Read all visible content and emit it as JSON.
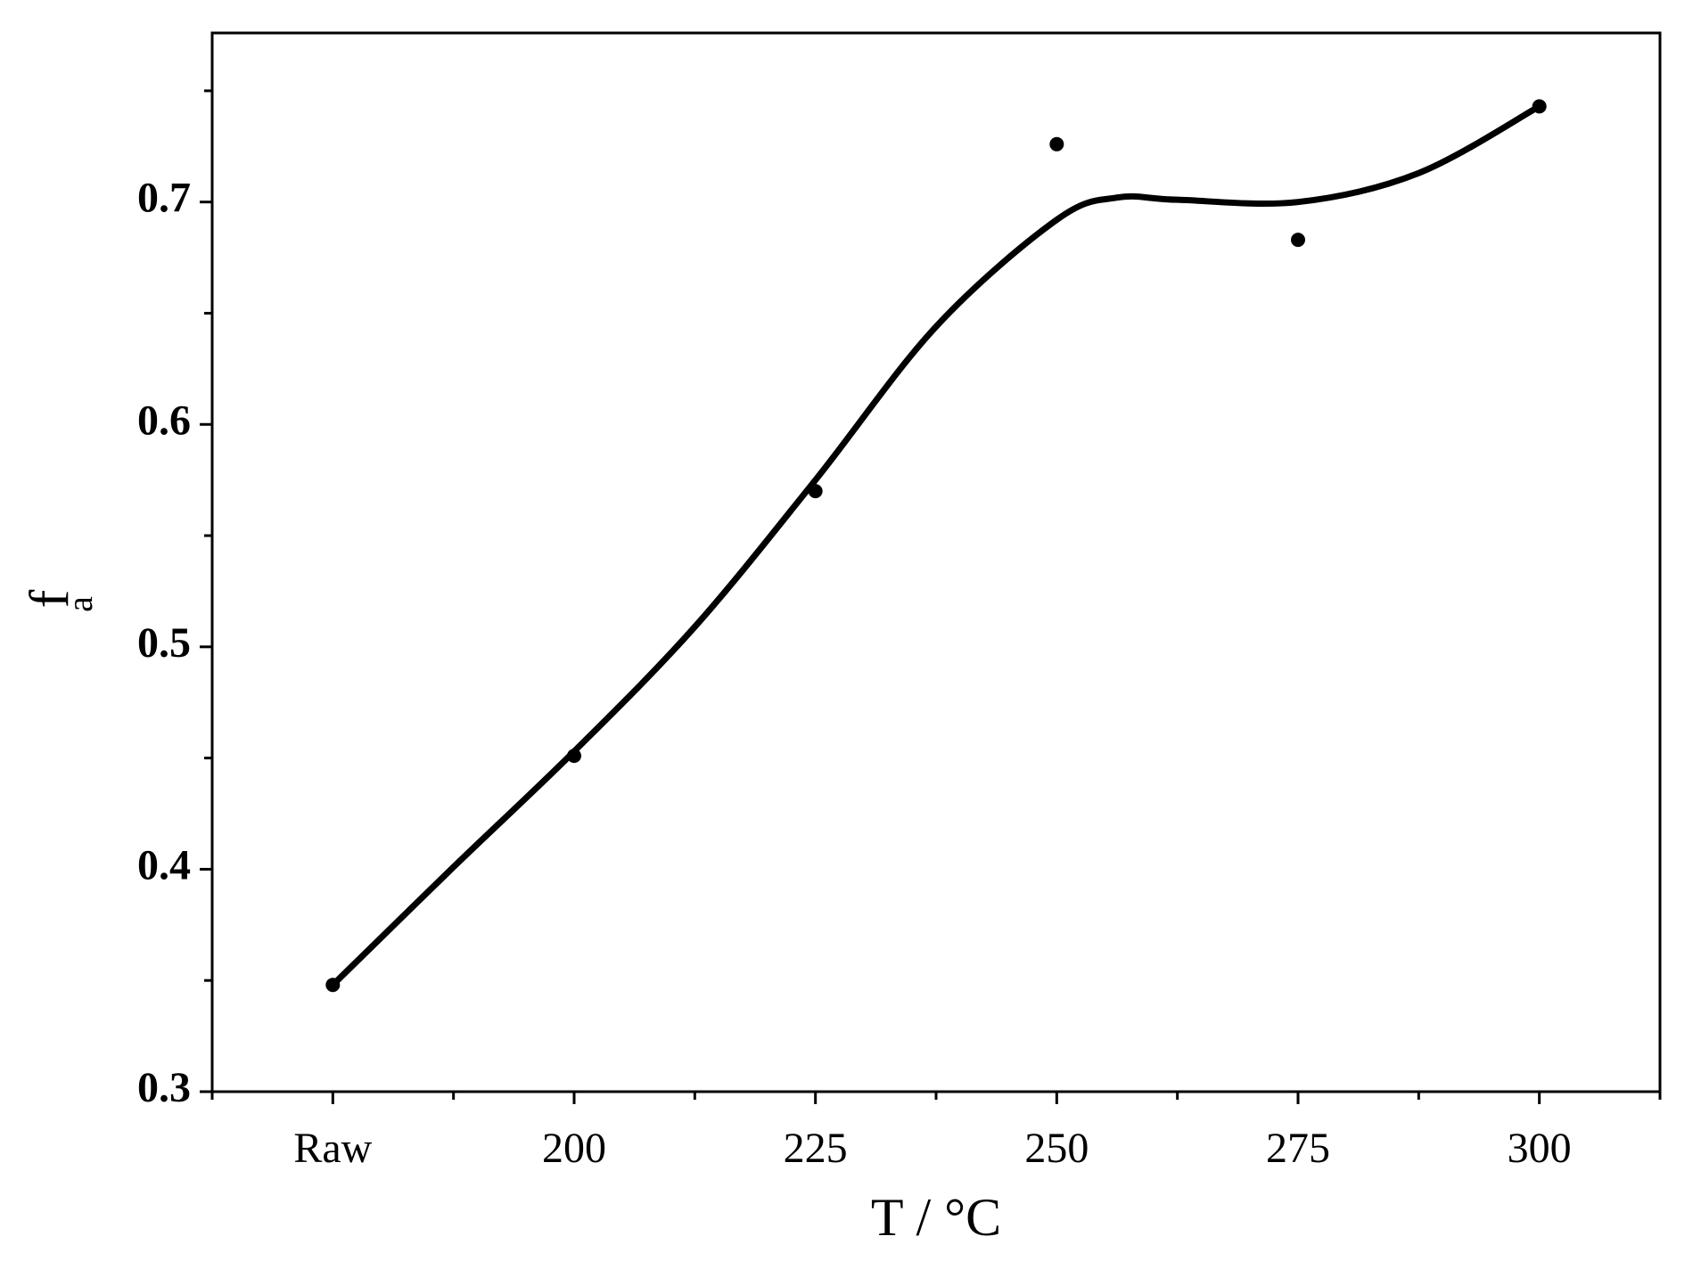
{
  "chart_data": {
    "type": "scatter",
    "xlabel": "T / °C",
    "ylabel": {
      "text": "f",
      "subscript": "a"
    },
    "xlim": [
      -0.5,
      5.5
    ],
    "xticks": [
      {
        "value": 0,
        "label": "Raw"
      },
      {
        "value": 1,
        "label": "200"
      },
      {
        "value": 2,
        "label": "225"
      },
      {
        "value": 3,
        "label": "250"
      },
      {
        "value": 4,
        "label": "275"
      },
      {
        "value": 5,
        "label": "300"
      }
    ],
    "xminorticks": [
      -0.5,
      0.5,
      1.5,
      2.5,
      3.5,
      4.5,
      5.5
    ],
    "ylim": [
      0.3,
      0.776
    ],
    "yticks": [
      0.3,
      0.4,
      0.5,
      0.6,
      0.7
    ],
    "yminorticks": [
      0.35,
      0.45,
      0.55,
      0.65,
      0.75
    ],
    "series": [
      {
        "type": "scatter",
        "color": "#000000",
        "x": [
          0,
          1,
          2,
          3,
          4,
          5
        ],
        "values": [
          0.348,
          0.451,
          0.57,
          0.726,
          0.683,
          0.743
        ]
      },
      {
        "type": "line",
        "color": "#000000",
        "x": [
          0,
          0.5,
          1,
          1.5,
          2,
          2.5,
          3,
          3.25,
          3.5,
          4,
          4.5,
          5
        ],
        "values": [
          0.348,
          0.401,
          0.453,
          0.509,
          0.575,
          0.644,
          0.692,
          0.702,
          0.701,
          0.7,
          0.713,
          0.743
        ]
      }
    ]
  }
}
